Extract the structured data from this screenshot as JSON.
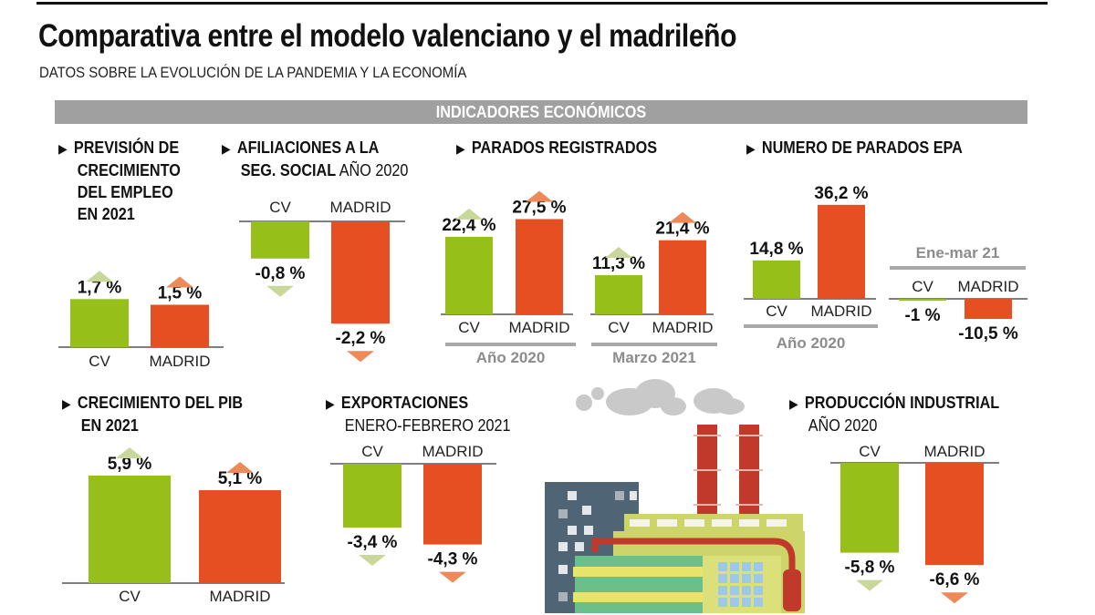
{
  "header": {
    "title": "Comparativa entre el modelo valenciano y el madrileño",
    "subtitle": "DATOS SOBRE LA EVOLUCIÓN DE LA PANDEMIA Y LA ECONOMÍA",
    "section": "INDICADORES ECONÓMICOS"
  },
  "colors": {
    "cv": "#96bf1a",
    "madrid": "#e64f22",
    "cv_arrow": "#c9d89a",
    "madrid_arrow": "#ee8a5a",
    "group_bar": "#a8a8a8",
    "group_text": "#8c8c8c"
  },
  "panels": {
    "empleo": {
      "title_lines": [
        "PREVISIÓN DE",
        "CRECIMIENTO",
        "DEL EMPLEO",
        "EN 2021"
      ]
    },
    "afiliaciones": {
      "title_lines": [
        "AFILIACIONES A LA"
      ],
      "title_bold2": "SEG. SOCIAL",
      "title_light2": " AÑO 2020"
    },
    "parados": {
      "title": "PARADOS REGISTRADOS"
    },
    "epa": {
      "title": "NUMERO DE PARADOS EPA"
    },
    "pib": {
      "title_lines": [
        "CRECIMIENTO DEL PIB",
        "EN 2021"
      ]
    },
    "export": {
      "title": "EXPORTACIONES",
      "subtitle": "ENERO-FEBRERO 2021"
    },
    "industrial": {
      "title": "PRODUCCIÓN INDUSTRIAL",
      "subtitle": "AÑO 2020"
    }
  },
  "chart_data": [
    {
      "type": "bar",
      "id": "empleo",
      "title": "Previsión de crecimiento del empleo en 2021",
      "categories": [
        "CV",
        "MADRID"
      ],
      "values": [
        1.7,
        1.5
      ],
      "labels": [
        "1,7 %",
        "1,5 %"
      ],
      "unit": "%"
    },
    {
      "type": "bar",
      "id": "afiliaciones",
      "title": "Afiliaciones a la Seg. Social año 2020",
      "categories": [
        "CV",
        "MADRID"
      ],
      "values": [
        -0.8,
        -2.2
      ],
      "labels": [
        "-0,8 %",
        "-2,2 %"
      ],
      "unit": "%"
    },
    {
      "type": "bar",
      "id": "parados_2020",
      "title": "Parados registrados",
      "group": "Año 2020",
      "categories": [
        "CV",
        "MADRID"
      ],
      "values": [
        22.4,
        27.5
      ],
      "labels": [
        "22,4 %",
        "27,5 %"
      ],
      "unit": "%"
    },
    {
      "type": "bar",
      "id": "parados_mar21",
      "title": "Parados registrados",
      "group": "Marzo 2021",
      "categories": [
        "CV",
        "MADRID"
      ],
      "values": [
        11.3,
        21.4
      ],
      "labels": [
        "11,3 %",
        "21,4 %"
      ],
      "unit": "%"
    },
    {
      "type": "bar",
      "id": "epa_2020",
      "title": "Numero de parados EPA",
      "group": "Año 2020",
      "categories": [
        "CV",
        "MADRID"
      ],
      "values": [
        14.8,
        36.2
      ],
      "labels": [
        "14,8 %",
        "36,2 %"
      ],
      "unit": "%"
    },
    {
      "type": "bar",
      "id": "epa_enemar21",
      "title": "Numero de parados EPA",
      "group": "Ene-mar 21",
      "categories": [
        "CV",
        "MADRID"
      ],
      "values": [
        -1,
        -10.5
      ],
      "labels": [
        "-1 %",
        "-10,5 %"
      ],
      "unit": "%"
    },
    {
      "type": "bar",
      "id": "pib",
      "title": "Crecimiento del PIB en 2021",
      "categories": [
        "CV",
        "MADRID"
      ],
      "values": [
        5.9,
        5.1
      ],
      "labels": [
        "5,9 %",
        "5,1 %"
      ],
      "unit": "%"
    },
    {
      "type": "bar",
      "id": "export",
      "title": "Exportaciones enero-febrero 2021",
      "categories": [
        "CV",
        "MADRID"
      ],
      "values": [
        -3.4,
        -4.3
      ],
      "labels": [
        "-3,4 %",
        "-4,3 %"
      ],
      "unit": "%"
    },
    {
      "type": "bar",
      "id": "industrial",
      "title": "Producción industrial año 2020",
      "categories": [
        "CV",
        "MADRID"
      ],
      "values": [
        -5.8,
        -6.6
      ],
      "labels": [
        "-5,8 %",
        "-6,6 %"
      ],
      "unit": "%"
    }
  ]
}
